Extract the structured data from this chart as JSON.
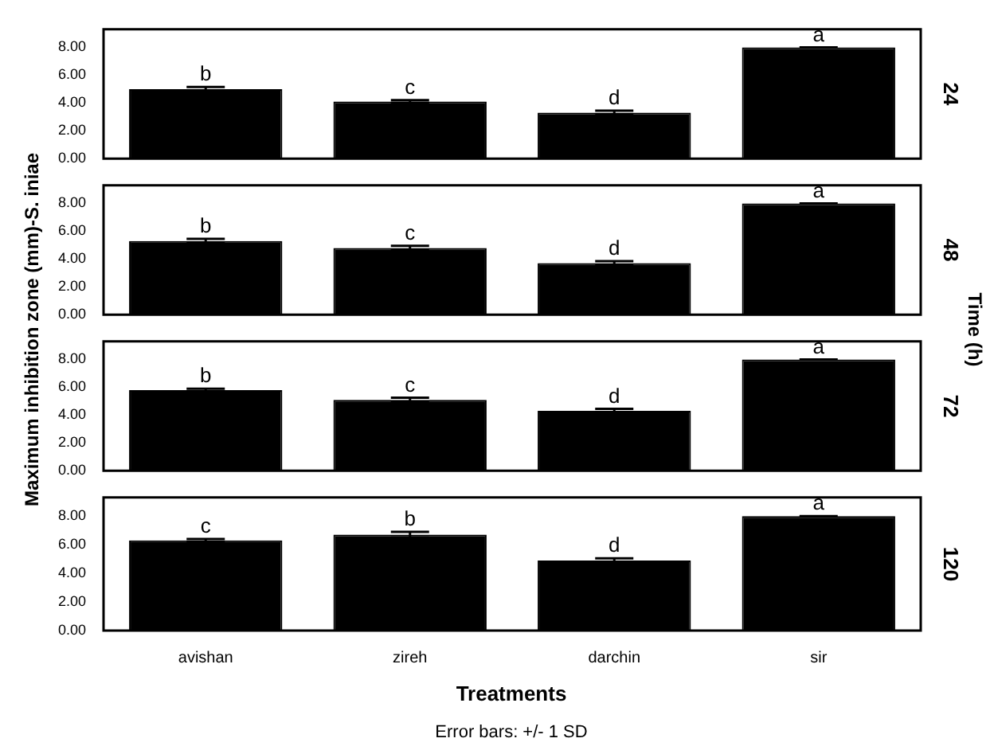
{
  "chart_data": [
    {
      "type": "bar",
      "categories": [
        "avishan",
        "zireh",
        "darchin",
        "sir"
      ],
      "values": [
        5.0,
        4.1,
        3.3,
        8.0
      ],
      "errors": [
        0.15,
        0.1,
        0.15,
        0
      ],
      "color": "#000000",
      "ylim": [
        0,
        9.3
      ],
      "yticks": [
        {
          "value": 0,
          "label": "0.00"
        },
        {
          "value": 2,
          "label": "2.00"
        },
        {
          "value": 4,
          "label": "4.00"
        },
        {
          "value": 6,
          "label": "6.00"
        },
        {
          "value": 8,
          "label": "8.00"
        }
      ],
      "y2label": "24",
      "tick_labels": "y",
      "ylabel": "Maximum inhibition zone (mm)-S. iniae",
      "annotations": [
        "Time (h)",
        {
          "text": "b",
          "x": "avishan",
          "y": 5.15
        },
        {
          "text": "c",
          "x": "zireh",
          "y": 4.2
        },
        {
          "text": "d",
          "x": "darchin",
          "y": 3.45
        },
        {
          "text": "a",
          "x": "sir",
          "y": 8.0
        }
      ]
    },
    {
      "type": "bar",
      "categories": [
        "avishan",
        "zireh",
        "darchin",
        "sir"
      ],
      "values": [
        5.3,
        4.8,
        3.7,
        8.0
      ],
      "errors": [
        0.15,
        0.15,
        0.15,
        0
      ],
      "color": "#000000",
      "ylim": [
        0,
        9.3
      ],
      "yticks": [
        {
          "value": 0,
          "label": "0.00"
        },
        {
          "value": 2,
          "label": "2.00"
        },
        {
          "value": 4,
          "label": "4.00"
        },
        {
          "value": 6,
          "label": "6.00"
        },
        {
          "value": 8,
          "label": "8.00"
        }
      ],
      "y2label": "48",
      "tick_labels": "y",
      "annotations": [
        {
          "text": "b",
          "x": "avishan",
          "y": 5.45
        },
        {
          "text": "c",
          "x": "zireh",
          "y": 4.95
        },
        {
          "text": "d",
          "x": "darchin",
          "y": 3.85
        },
        {
          "text": "a",
          "x": "sir",
          "y": 8.0
        }
      ]
    },
    {
      "type": "bar",
      "categories": [
        "avishan",
        "zireh",
        "darchin",
        "sir"
      ],
      "values": [
        5.8,
        5.1,
        4.3,
        8.0
      ],
      "errors": [
        0.1,
        0.15,
        0.15,
        0
      ],
      "color": "#000000",
      "ylim": [
        0,
        9.3
      ],
      "yticks": [
        {
          "value": 0,
          "label": "0.00"
        },
        {
          "value": 2,
          "label": "2.00"
        },
        {
          "value": 4,
          "label": "4.00"
        },
        {
          "value": 6,
          "label": "6.00"
        },
        {
          "value": 8,
          "label": "8.00"
        }
      ],
      "y2label": "72",
      "tick_labels": "y",
      "annotations": [
        {
          "text": "b",
          "x": "avishan",
          "y": 5.9
        },
        {
          "text": "c",
          "x": "zireh",
          "y": 5.25
        },
        {
          "text": "d",
          "x": "darchin",
          "y": 4.45
        },
        {
          "text": "a",
          "x": "sir",
          "y": 8.0
        }
      ]
    },
    {
      "type": "bar",
      "categories": [
        "avishan",
        "zireh",
        "darchin",
        "sir"
      ],
      "values": [
        6.3,
        6.7,
        4.9,
        8.0
      ],
      "errors": [
        0.1,
        0.2,
        0.15,
        0
      ],
      "color": "#000000",
      "ylim": [
        0,
        9.3
      ],
      "yticks": [
        {
          "value": 0,
          "label": "0.00"
        },
        {
          "value": 2,
          "label": "2.00"
        },
        {
          "value": 4,
          "label": "4.00"
        },
        {
          "value": 6,
          "label": "6.00"
        },
        {
          "value": 8,
          "label": "8.00"
        }
      ],
      "y2label": "120",
      "xlabel": "Treatments",
      "annotations": [
        "Error bars: +/- 1 SD",
        {
          "text": "c",
          "x": "avishan",
          "y": 6.4
        },
        {
          "text": "b",
          "x": "zireh",
          "y": 6.9
        },
        {
          "text": "d",
          "x": "darchin",
          "y": 5.05
        },
        {
          "text": "a",
          "x": "sir",
          "y": 8.0
        }
      ]
    }
  ]
}
